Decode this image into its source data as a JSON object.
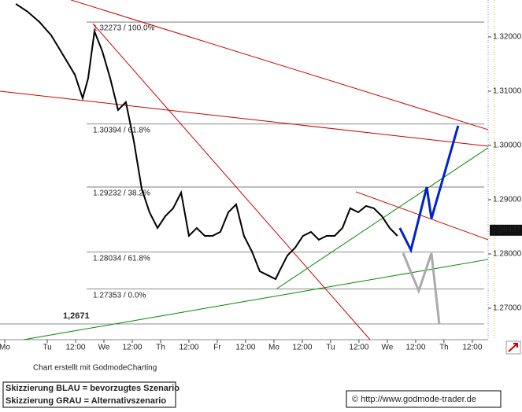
{
  "chart_data": {
    "type": "line",
    "x": [
      -13.3,
      -8.3,
      -3.3,
      1.7,
      6.7,
      11.7,
      15,
      17.3,
      20,
      23.3,
      26.7,
      30,
      33.3,
      36.7,
      40,
      43.3,
      46.7,
      50,
      53.3,
      56.7,
      60,
      63.3,
      66.7,
      70,
      73.3,
      76.7,
      80,
      83.3,
      86.7,
      90,
      93.3,
      96.7,
      98.3,
      101.7,
      105,
      108.3,
      111.7,
      115,
      118.3,
      121.7,
      125,
      128.3,
      131.7,
      135,
      138.3,
      141.7,
      145,
      148.3
    ],
    "values": [
      1.32609,
      1.32464,
      1.32275,
      1.32029,
      1.31667,
      1.31304,
      1.3087,
      1.31232,
      1.32101,
      1.31739,
      1.31232,
      1.30652,
      1.30797,
      1.30072,
      1.29203,
      1.28768,
      1.28478,
      1.28696,
      1.28841,
      1.2913,
      1.28333,
      1.28478,
      1.28333,
      1.28333,
      1.28406,
      1.28768,
      1.28913,
      1.28333,
      1.28043,
      1.27681,
      1.27609,
      1.27536,
      1.27681,
      1.27971,
      1.28116,
      1.28333,
      1.28406,
      1.28261,
      1.28333,
      1.28333,
      1.28478,
      1.28841,
      1.28768,
      1.28884,
      1.28841,
      1.28696,
      1.28478,
      1.28333
    ],
    "color": "#000000",
    "xlim": [
      -20,
      186.7
    ],
    "xticks": [
      {
        "value": -18,
        "label": "Mo"
      },
      {
        "value": 0,
        "label": "Tu"
      },
      {
        "value": 12,
        "label": "12:00"
      },
      {
        "value": 24,
        "label": "We"
      },
      {
        "value": 36,
        "label": "12:00"
      },
      {
        "value": 48,
        "label": "Th"
      },
      {
        "value": 60,
        "label": "12:00"
      },
      {
        "value": 72,
        "label": "Fr"
      },
      {
        "value": 84,
        "label": "12:00"
      },
      {
        "value": 96,
        "label": "Mo"
      },
      {
        "value": 108,
        "label": "12:00"
      },
      {
        "value": 120,
        "label": "Tu"
      },
      {
        "value": 132,
        "label": "12:00"
      },
      {
        "value": 144,
        "label": "We"
      },
      {
        "value": 156,
        "label": "12:00"
      },
      {
        "value": 168,
        "label": "Th"
      },
      {
        "value": 180,
        "label": "12:00"
      }
    ],
    "ylim": [
      1.2642,
      1.3268
    ],
    "yticks": [
      {
        "value": 1.27,
        "label": "1.27000"
      },
      {
        "value": 1.28,
        "label": "1.28000"
      },
      {
        "value": 1.29,
        "label": "1.29000"
      },
      {
        "value": 1.3,
        "label": "1.30000"
      },
      {
        "value": 1.31,
        "label": "1.31000"
      },
      {
        "value": 1.32,
        "label": "1.32000"
      }
    ],
    "last": {
      "value": 1.28437,
      "label": "1.28437"
    },
    "annotations": [
      {
        "value": 1.32273,
        "label": "1.32273 / 100.0%"
      },
      {
        "value": 1.30394,
        "label": "1.30394 / 61.8%"
      },
      {
        "value": 1.29232,
        "label": "1.29232 / 38.2%"
      },
      {
        "value": 1.28034,
        "label": "1.28034 / 61.8%"
      },
      {
        "value": 1.27353,
        "label": "1.27353 / 0.0%"
      },
      {
        "value": 1.2671,
        "label": "1,2671"
      }
    ],
    "lines": [
      {
        "color": "#cc0000",
        "x": [
          10,
          186.7
        ],
        "y": [
          1.32681,
          1.3029
        ]
      },
      {
        "color": "#cc0000",
        "x": [
          -20,
          186.7
        ],
        "y": [
          1.31,
          1.29986
        ]
      },
      {
        "color": "#cc0000",
        "x": [
          19.3,
          136.7
        ],
        "y": [
          1.32246,
          1.2642
        ]
      },
      {
        "color": "#cc0000",
        "x": [
          130.7,
          186.7
        ],
        "y": [
          1.29145,
          1.28261
        ]
      },
      {
        "color": "#008800",
        "x": [
          -10,
          186.7
        ],
        "y": [
          1.2642,
          1.27899
        ]
      },
      {
        "color": "#008800",
        "x": [
          97.3,
          186.7
        ],
        "y": [
          1.27362,
          1.29957
        ]
      },
      {
        "color": "#0022cc",
        "x": [
          149.3,
          154,
          160.7,
          162.7,
          174
        ],
        "y": [
          1.28478,
          1.28072,
          1.29232,
          1.28652,
          1.30362
        ]
      },
      {
        "color": "#aaaaaa",
        "x": [
          150.7,
          157.3,
          162.7,
          166
        ],
        "y": [
          1.28014,
          1.27319,
          1.28014,
          1.2671
        ]
      }
    ],
    "credit": "Chart erstellt mit GodmodeCharting",
    "notes": [
      "Skizzierung BLAU = bevorzugtes Szenario",
      "Skizzierung GRAU = Alternativszenario"
    ],
    "source": "© http://www.godmode-trader.de"
  }
}
